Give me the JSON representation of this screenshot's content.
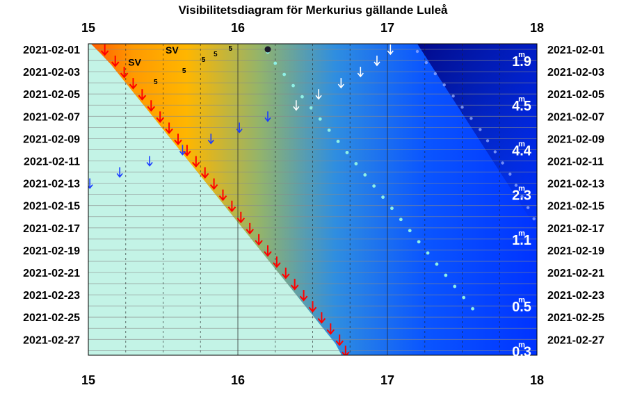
{
  "chart_data": {
    "type": "line",
    "title": "Visibilitetsdiagram för Merkurius gällande Luleå",
    "xlim": [
      15,
      18
    ],
    "x_ticks": [
      "15",
      "16",
      "17",
      "18"
    ],
    "dates": [
      "2021-02-01",
      "2021-02-03",
      "2021-02-05",
      "2021-02-07",
      "2021-02-09",
      "2021-02-11",
      "2021-02-13",
      "2021-02-15",
      "2021-02-17",
      "2021-02-19",
      "2021-02-21",
      "2021-02-23",
      "2021-02-25",
      "2021-02-27"
    ],
    "magnitudes": [
      {
        "date": "2021-02-01",
        "value": "1.9"
      },
      {
        "date": "2021-02-05",
        "value": "4.5"
      },
      {
        "date": "2021-02-09",
        "value": "4.4"
      },
      {
        "date": "2021-02-13",
        "value": "2.3"
      },
      {
        "date": "2021-02-17",
        "value": "1.1"
      },
      {
        "date": "2021-02-23",
        "value": "0.5"
      },
      {
        "date": "2021-02-27",
        "value": "0.3"
      }
    ],
    "mag_unit": "m",
    "sunset_hours": [
      15.11,
      15.18,
      15.24,
      15.3,
      15.36,
      15.42,
      15.48,
      15.54,
      15.6,
      15.66,
      15.72,
      15.78,
      15.84,
      15.9,
      15.96,
      16.02,
      16.08,
      16.14,
      16.2,
      16.26,
      16.32,
      16.38,
      16.44,
      16.5,
      16.56,
      16.62,
      16.68,
      16.72
    ],
    "planet_set_hours": [
      16.2,
      16.25,
      16.31,
      16.37,
      16.43,
      16.49,
      16.55,
      16.61,
      16.67,
      16.73,
      16.79,
      16.85,
      16.91,
      16.97,
      17.03,
      17.09,
      17.15,
      17.21,
      17.27,
      17.33,
      17.39,
      17.45,
      17.51,
      17.57
    ],
    "twilight_dot_hours": [
      17.2,
      17.26,
      17.32,
      17.38,
      17.44,
      17.5,
      17.56,
      17.62,
      17.67,
      17.72,
      17.77,
      17.82,
      17.86,
      17.9,
      17.94,
      17.98
    ],
    "moonrise_arrows": [
      {
        "day": 1,
        "hour": 17.02
      },
      {
        "day": 2,
        "hour": 16.93
      },
      {
        "day": 3,
        "hour": 16.82
      },
      {
        "day": 4,
        "hour": 16.69
      },
      {
        "day": 5,
        "hour": 16.54
      },
      {
        "day": 6,
        "hour": 16.39
      },
      {
        "day": 7,
        "hour": 16.2
      },
      {
        "day": 8,
        "hour": 16.01
      },
      {
        "day": 9,
        "hour": 15.82
      },
      {
        "day": 10,
        "hour": 15.63
      },
      {
        "day": 11,
        "hour": 15.41
      },
      {
        "day": 12,
        "hour": 15.21
      },
      {
        "day": 13,
        "hour": 15.01
      }
    ],
    "altitude_labels": [
      {
        "day": 1,
        "hour": 15.95,
        "value": "5"
      },
      {
        "day": 1.5,
        "hour": 15.85,
        "value": "5"
      },
      {
        "day": 2,
        "hour": 15.77,
        "value": "5"
      },
      {
        "day": 3,
        "hour": 15.64,
        "value": "5"
      },
      {
        "day": 4,
        "hour": 15.45,
        "value": "5"
      }
    ],
    "direction_labels": [
      {
        "day": 1.05,
        "hour": 15.56,
        "value": "SV"
      },
      {
        "day": 2.15,
        "hour": 15.31,
        "value": "SV"
      }
    ],
    "colors": {
      "day": "#c3f3e6",
      "sunset": "#ff5500",
      "twilight": "#0033ff",
      "night": "#000080",
      "arrow_red": "#ff0000",
      "arrow_blue": "#1a3cff",
      "dot": "#8ff0e6"
    }
  }
}
